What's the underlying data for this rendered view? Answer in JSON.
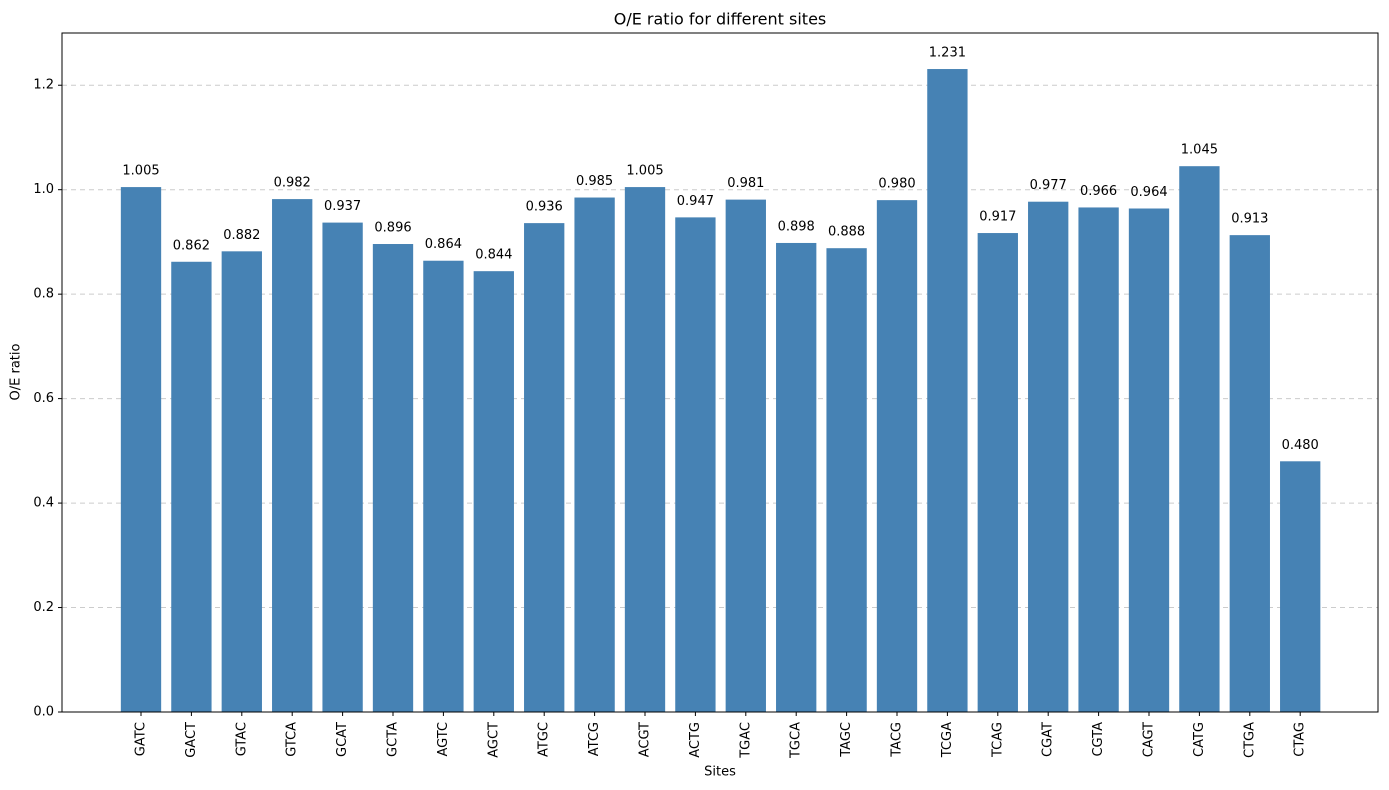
{
  "chart_data": {
    "type": "bar",
    "title": "O/E ratio for different sites",
    "x_label": "Sites",
    "y_label": "O/E ratio",
    "categories": [
      "GATC",
      "GACT",
      "GTAC",
      "GTCA",
      "GCAT",
      "GCTA",
      "AGTC",
      "AGCT",
      "ATGC",
      "ATCG",
      "ACGT",
      "ACTG",
      "TGAC",
      "TGCA",
      "TAGC",
      "TACG",
      "TCGA",
      "TCAG",
      "CGAT",
      "CGTA",
      "CAGT",
      "CATG",
      "CTGA",
      "CTAG"
    ],
    "values": [
      1.005,
      0.862,
      0.882,
      0.982,
      0.937,
      0.896,
      0.864,
      0.844,
      0.936,
      0.985,
      1.005,
      0.947,
      0.981,
      0.898,
      0.888,
      0.98,
      1.231,
      0.917,
      0.977,
      0.966,
      0.964,
      1.045,
      0.913,
      0.48
    ],
    "value_labels": [
      "1.005",
      "0.862",
      "0.882",
      "0.982",
      "0.937",
      "0.896",
      "0.864",
      "0.844",
      "0.936",
      "0.985",
      "1.005",
      "0.947",
      "0.981",
      "0.898",
      "0.888",
      "0.980",
      "1.231",
      "0.917",
      "0.977",
      "0.966",
      "0.964",
      "1.045",
      "0.913",
      "0.480"
    ],
    "color": "#4682b4",
    "ylim": [
      0,
      1.3
    ],
    "yticks": [
      {
        "value": 0,
        "label": "0.0"
      },
      0.2,
      0.4,
      0.6,
      0.8,
      {
        "value": 1,
        "label": "1.0"
      },
      1.2
    ],
    "grid": true
  }
}
